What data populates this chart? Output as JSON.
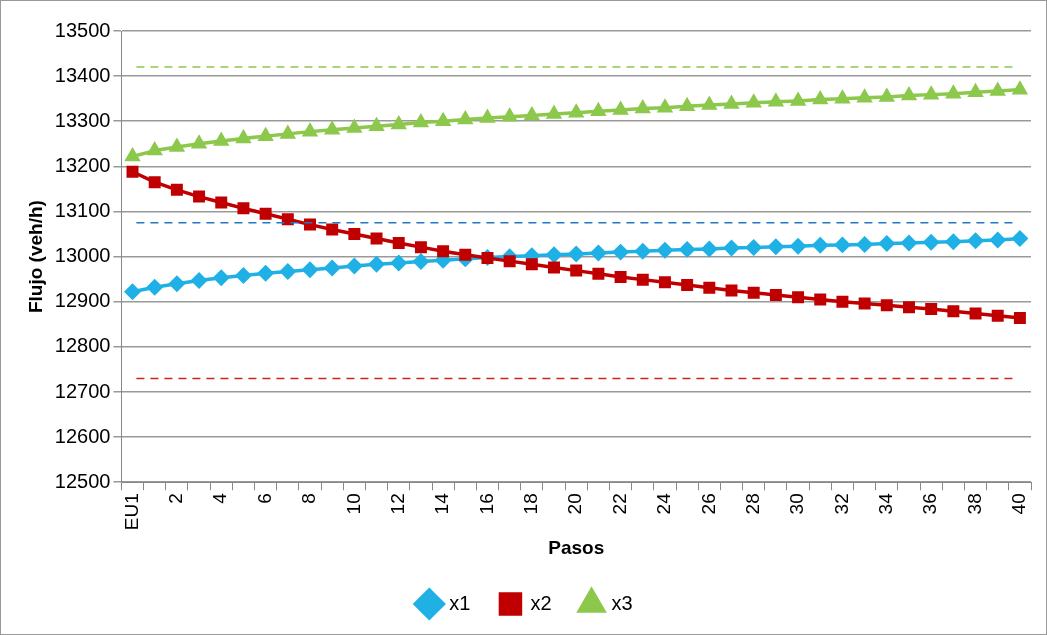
{
  "chart_data": {
    "type": "line",
    "xlabel": "Pasos",
    "ylabel": "Flujo (veh/h)",
    "categories": [
      "EU1",
      null,
      "2",
      null,
      "4",
      null,
      "6",
      null,
      "8",
      null,
      "10",
      null,
      "12",
      null,
      "14",
      null,
      "16",
      null,
      "18",
      null,
      "20",
      null,
      "22",
      null,
      "24",
      null,
      "26",
      null,
      "28",
      null,
      "30",
      null,
      "32",
      null,
      "34",
      null,
      "36",
      null,
      "38",
      null,
      "40"
    ],
    "series": [
      {
        "name": "x1",
        "color": "#1fb0e6",
        "marker": "diamond",
        "values": [
          12922,
          12932,
          12940,
          12947,
          12953,
          12958,
          12963,
          12967,
          12971,
          12975,
          12979,
          12983,
          12986,
          12989,
          12992,
          12995,
          12998,
          13000,
          13002,
          13004,
          13006,
          13008,
          13010,
          13012,
          13014,
          13016,
          13017,
          13019,
          13020,
          13022,
          13023,
          13025,
          13026,
          13027,
          13029,
          13030,
          13032,
          13033,
          13035,
          13037,
          13040
        ]
      },
      {
        "name": "x2",
        "color": "#c00000",
        "marker": "square",
        "values": [
          13188,
          13165,
          13148,
          13133,
          13120,
          13107,
          13095,
          13083,
          13071,
          13060,
          13050,
          13040,
          13030,
          13021,
          13012,
          13004,
          12997,
          12990,
          12983,
          12976,
          12969,
          12962,
          12955,
          12949,
          12943,
          12937,
          12931,
          12925,
          12920,
          12915,
          12910,
          12905,
          12900,
          12896,
          12892,
          12888,
          12884,
          12879,
          12874,
          12869,
          12864
        ]
      },
      {
        "name": "x3",
        "color": "#8cc84b",
        "marker": "triangle",
        "values": [
          13222,
          13235,
          13243,
          13250,
          13256,
          13262,
          13267,
          13272,
          13277,
          13281,
          13285,
          13289,
          13293,
          13297,
          13300,
          13304,
          13307,
          13310,
          13313,
          13316,
          13319,
          13322,
          13325,
          13328,
          13330,
          13333,
          13336,
          13338,
          13341,
          13343,
          13345,
          13348,
          13350,
          13352,
          13354,
          13357,
          13359,
          13361,
          13364,
          13367,
          13370
        ]
      }
    ],
    "ylim": [
      12500,
      13500
    ],
    "yticks": [
      12500,
      12600,
      12700,
      12800,
      12900,
      13000,
      13100,
      13200,
      13300,
      13400,
      13500
    ],
    "ref_lines": [
      {
        "axis": "y",
        "value": 13420,
        "color": "#8cc84b",
        "line_style": "dashed"
      },
      {
        "axis": "y",
        "value": 13075,
        "color": "#1f77c8",
        "line_style": "dashed"
      },
      {
        "axis": "y",
        "value": 12730,
        "color": "#d42020",
        "line_style": "dashed"
      }
    ],
    "grid": "y",
    "legend": "bottom",
    "line_style": "solid"
  }
}
